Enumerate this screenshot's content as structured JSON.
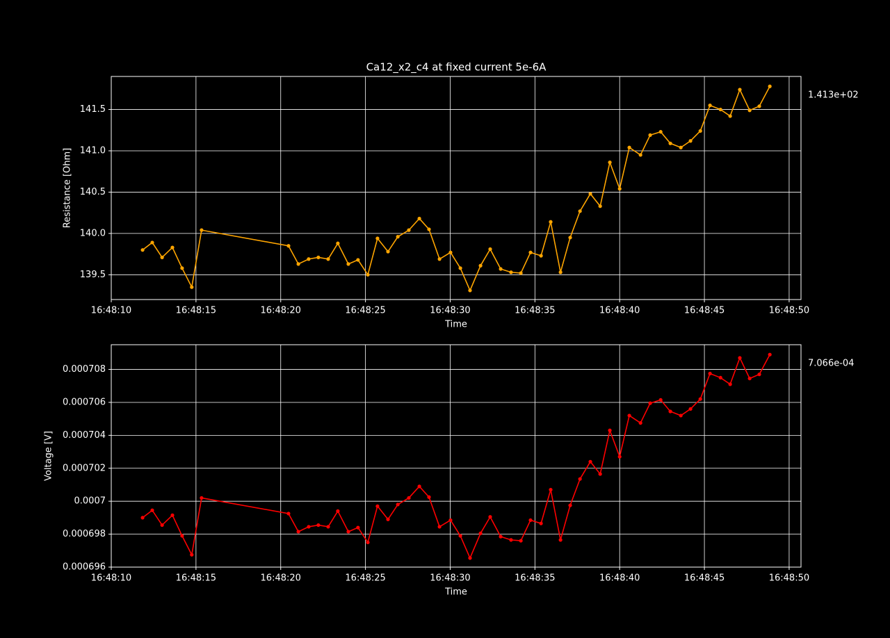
{
  "chart_data": [
    {
      "type": "line",
      "title": "Ca12_x2_c4 at fixed current 5e-6A",
      "x_label": "Time",
      "y_label": "Resistance [Ohm]",
      "annotation": "1.413e+02",
      "x": [
        "16:48:11.85",
        "16:48:12.42",
        "16:48:13.00",
        "16:48:13.61",
        "16:48:14.18",
        "16:48:14.75",
        "16:48:15.33",
        "16:48:20.46",
        "16:48:21.04",
        "16:48:21.65",
        "16:48:22.22",
        "16:48:22.80",
        "16:48:23.37",
        "16:48:23.99",
        "16:48:24.56",
        "16:48:25.14",
        "16:48:25.71",
        "16:48:26.33",
        "16:48:26.91",
        "16:48:27.56",
        "16:48:28.18",
        "16:48:28.75",
        "16:48:29.37",
        "16:48:30.02",
        "16:48:30.60",
        "16:48:31.17",
        "16:48:31.79",
        "16:48:32.36",
        "16:48:32.98",
        "16:48:33.59",
        "16:48:34.17",
        "16:48:34.74",
        "16:48:35.36",
        "16:48:35.93",
        "16:48:36.51",
        "16:48:37.08",
        "16:48:37.66",
        "16:48:38.27",
        "16:48:38.85",
        "16:48:39.42",
        "16:48:40.00",
        "16:48:40.57",
        "16:48:41.23",
        "16:48:41.80",
        "16:48:42.42",
        "16:48:42.99",
        "16:48:43.61",
        "16:48:44.18",
        "16:48:44.76",
        "16:48:45.33",
        "16:48:45.95",
        "16:48:46.52",
        "16:48:47.09",
        "16:48:47.67",
        "16:48:48.24",
        "16:48:48.86"
      ],
      "series": [
        {
          "name": "Resistance",
          "color": "#ffa500",
          "values": [
            139.8,
            139.89,
            139.71,
            139.83,
            139.58,
            139.35,
            140.04,
            139.85,
            139.63,
            139.69,
            139.71,
            139.69,
            139.88,
            139.63,
            139.68,
            139.5,
            139.94,
            139.78,
            139.96,
            140.04,
            140.18,
            140.05,
            139.69,
            139.77,
            139.58,
            139.31,
            139.61,
            139.81,
            139.57,
            139.53,
            139.52,
            139.77,
            139.73,
            140.14,
            139.53,
            139.95,
            140.27,
            140.48,
            140.33,
            140.86,
            140.54,
            141.04,
            140.95,
            141.19,
            141.23,
            141.09,
            141.04,
            141.12,
            141.24,
            141.55,
            141.5,
            141.42,
            141.74,
            141.49,
            141.54,
            141.78
          ]
        }
      ],
      "xlim": [
        "16:48:10",
        "16:48:50.7"
      ],
      "xticks": [
        "16:48:10",
        "16:48:15",
        "16:48:20",
        "16:48:25",
        "16:48:30",
        "16:48:35",
        "16:48:40",
        "16:48:45",
        "16:48:50"
      ],
      "ylim": [
        139.2,
        141.9
      ],
      "yticks": [
        {
          "value": 139.5,
          "label": "139.5"
        },
        {
          "value": 140,
          "label": "140.0"
        },
        {
          "value": 140.5,
          "label": "140.5"
        },
        {
          "value": 141,
          "label": "141.0"
        },
        {
          "value": 141.5,
          "label": "141.5"
        }
      ],
      "grid": true
    },
    {
      "type": "line",
      "x_label": "Time",
      "y_label": "Voltage [V]",
      "annotation": "7.066e-04",
      "x": [
        "16:48:11.85",
        "16:48:12.42",
        "16:48:13.00",
        "16:48:13.61",
        "16:48:14.18",
        "16:48:14.75",
        "16:48:15.33",
        "16:48:20.46",
        "16:48:21.04",
        "16:48:21.65",
        "16:48:22.22",
        "16:48:22.80",
        "16:48:23.37",
        "16:48:23.99",
        "16:48:24.56",
        "16:48:25.14",
        "16:48:25.71",
        "16:48:26.33",
        "16:48:26.91",
        "16:48:27.56",
        "16:48:28.18",
        "16:48:28.75",
        "16:48:29.37",
        "16:48:30.02",
        "16:48:30.60",
        "16:48:31.17",
        "16:48:31.79",
        "16:48:32.36",
        "16:48:32.98",
        "16:48:33.59",
        "16:48:34.17",
        "16:48:34.74",
        "16:48:35.36",
        "16:48:35.93",
        "16:48:36.51",
        "16:48:37.08",
        "16:48:37.66",
        "16:48:38.27",
        "16:48:38.85",
        "16:48:39.42",
        "16:48:40.00",
        "16:48:40.57",
        "16:48:41.23",
        "16:48:41.80",
        "16:48:42.42",
        "16:48:42.99",
        "16:48:43.61",
        "16:48:44.18",
        "16:48:44.76",
        "16:48:45.33",
        "16:48:45.95",
        "16:48:46.52",
        "16:48:47.09",
        "16:48:47.67",
        "16:48:48.24",
        "16:48:48.86"
      ],
      "series": [
        {
          "name": "Voltage",
          "color": "#ff0000",
          "values": [
            0.000699,
            0.00069945,
            0.00069855,
            0.00069915,
            0.0006979,
            0.00069675,
            0.0007002,
            0.00069925,
            0.00069815,
            0.00069845,
            0.00069855,
            0.00069845,
            0.0006994,
            0.00069815,
            0.0006984,
            0.0006975,
            0.0006997,
            0.0006989,
            0.0006998,
            0.0007002,
            0.0007009,
            0.00070025,
            0.00069845,
            0.00069885,
            0.0006979,
            0.00069655,
            0.00069805,
            0.00069905,
            0.00069785,
            0.00069765,
            0.0006976,
            0.00069885,
            0.00069865,
            0.0007007,
            0.00069765,
            0.00069975,
            0.00070135,
            0.0007024,
            0.00070165,
            0.0007043,
            0.0007027,
            0.0007052,
            0.00070475,
            0.00070595,
            0.00070615,
            0.00070545,
            0.0007052,
            0.0007056,
            0.0007062,
            0.00070775,
            0.0007075,
            0.0007071,
            0.0007087,
            0.00070745,
            0.0007077,
            0.0007089
          ]
        }
      ],
      "xlim": [
        "16:48:10",
        "16:48:50.7"
      ],
      "xticks": [
        "16:48:10",
        "16:48:15",
        "16:48:20",
        "16:48:25",
        "16:48:30",
        "16:48:35",
        "16:48:40",
        "16:48:45",
        "16:48:50"
      ],
      "ylim": [
        0.000696,
        0.0007095
      ],
      "yticks": [
        0.000696,
        0.000698,
        0.0007,
        0.000702,
        0.000704,
        0.000706,
        0.000708
      ],
      "grid": true
    }
  ]
}
